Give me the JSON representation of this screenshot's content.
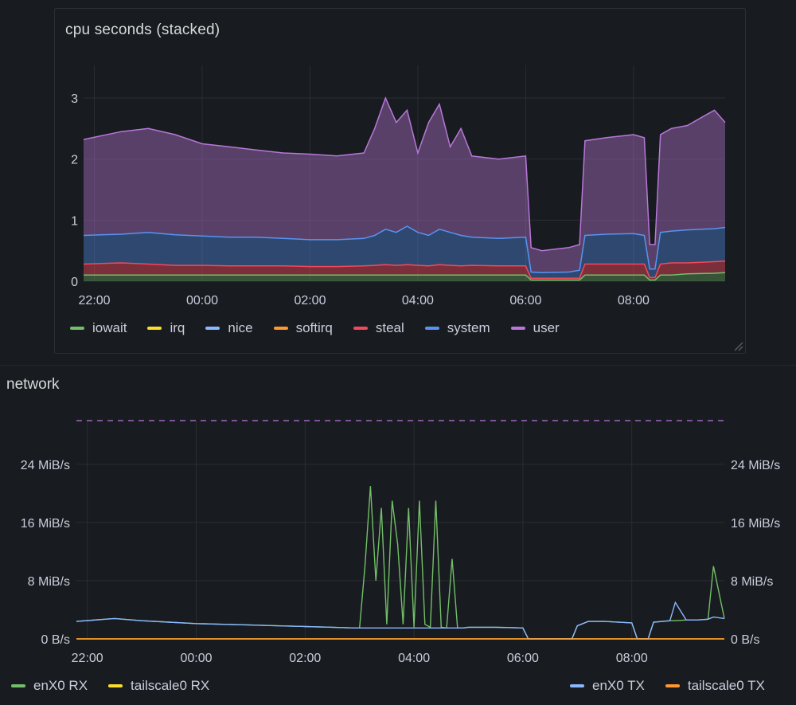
{
  "cpu_panel": {
    "title": "cpu seconds (stacked)",
    "legend": [
      {
        "name": "iowait",
        "color": "#73bf69"
      },
      {
        "name": "irq",
        "color": "#fade2a"
      },
      {
        "name": "nice",
        "color": "#8ab8ff"
      },
      {
        "name": "softirq",
        "color": "#ff9830"
      },
      {
        "name": "steal",
        "color": "#f2495c"
      },
      {
        "name": "system",
        "color": "#5794f2"
      },
      {
        "name": "user",
        "color": "#b877d9"
      }
    ]
  },
  "network_panel": {
    "title": "network",
    "legend_left": [
      {
        "name": "enX0 RX",
        "color": "#73bf69"
      },
      {
        "name": "tailscale0 RX",
        "color": "#fade2a"
      }
    ],
    "legend_right": [
      {
        "name": "enX0 TX",
        "color": "#8ab8ff"
      },
      {
        "name": "tailscale0 TX",
        "color": "#ff9830"
      }
    ]
  },
  "chart_data": [
    {
      "type": "area",
      "title": "cpu seconds (stacked)",
      "x_ticks": [
        "22:00",
        "00:00",
        "02:00",
        "04:00",
        "06:00",
        "08:00"
      ],
      "y_ticks": [
        "0",
        "1",
        "2",
        "3"
      ],
      "ylim": [
        0,
        3.3
      ],
      "x_hours": [
        21.8,
        22.5,
        23.0,
        23.5,
        0.0,
        0.5,
        1.0,
        1.5,
        2.0,
        2.5,
        3.0,
        3.2,
        3.4,
        3.6,
        3.8,
        4.0,
        4.2,
        4.4,
        4.6,
        4.8,
        5.0,
        5.5,
        6.0,
        6.1,
        6.3,
        6.8,
        7.0,
        7.1,
        7.5,
        8.0,
        8.2,
        8.3,
        8.4,
        8.5,
        8.7,
        9.0,
        9.5,
        9.7
      ],
      "stacked_cumulative": [
        {
          "name": "iowait",
          "values": [
            0.1,
            0.1,
            0.1,
            0.1,
            0.1,
            0.1,
            0.1,
            0.1,
            0.1,
            0.1,
            0.1,
            0.1,
            0.1,
            0.1,
            0.1,
            0.1,
            0.1,
            0.1,
            0.1,
            0.1,
            0.1,
            0.1,
            0.1,
            0.02,
            0.02,
            0.02,
            0.02,
            0.1,
            0.1,
            0.1,
            0.1,
            0.02,
            0.02,
            0.1,
            0.1,
            0.12,
            0.13,
            0.14
          ]
        },
        {
          "name": "steal",
          "values": [
            0.28,
            0.3,
            0.28,
            0.26,
            0.26,
            0.25,
            0.25,
            0.25,
            0.24,
            0.24,
            0.25,
            0.26,
            0.27,
            0.26,
            0.27,
            0.26,
            0.25,
            0.27,
            0.26,
            0.25,
            0.26,
            0.25,
            0.25,
            0.05,
            0.05,
            0.05,
            0.05,
            0.28,
            0.28,
            0.28,
            0.28,
            0.06,
            0.06,
            0.28,
            0.3,
            0.3,
            0.32,
            0.33
          ]
        },
        {
          "name": "system",
          "values": [
            0.75,
            0.77,
            0.8,
            0.76,
            0.74,
            0.72,
            0.72,
            0.7,
            0.68,
            0.68,
            0.7,
            0.75,
            0.85,
            0.8,
            0.9,
            0.8,
            0.75,
            0.85,
            0.8,
            0.75,
            0.72,
            0.7,
            0.72,
            0.15,
            0.14,
            0.15,
            0.18,
            0.75,
            0.77,
            0.78,
            0.75,
            0.2,
            0.2,
            0.8,
            0.82,
            0.84,
            0.86,
            0.88
          ]
        },
        {
          "name": "user",
          "values": [
            2.32,
            2.45,
            2.5,
            2.4,
            2.25,
            2.2,
            2.15,
            2.1,
            2.08,
            2.05,
            2.1,
            2.5,
            3.0,
            2.6,
            2.8,
            2.1,
            2.6,
            2.9,
            2.2,
            2.5,
            2.05,
            2.0,
            2.05,
            0.55,
            0.5,
            0.55,
            0.6,
            2.3,
            2.35,
            2.4,
            2.35,
            0.6,
            0.6,
            2.4,
            2.5,
            2.55,
            2.8,
            2.6
          ]
        }
      ]
    },
    {
      "type": "line",
      "title": "network",
      "x_ticks": [
        "22:00",
        "00:00",
        "02:00",
        "04:00",
        "06:00",
        "08:00"
      ],
      "y_ticks": [
        "0 B/s",
        "8 MiB/s",
        "16 MiB/s",
        "24 MiB/s"
      ],
      "ylim_mib": [
        0,
        30
      ],
      "threshold_mib": 30,
      "x_hours": [
        21.8,
        22.5,
        23.0,
        23.5,
        0.0,
        0.5,
        1.0,
        1.5,
        2.0,
        2.5,
        2.9,
        3.0,
        3.1,
        3.2,
        3.3,
        3.4,
        3.5,
        3.6,
        3.7,
        3.8,
        3.9,
        4.0,
        4.1,
        4.2,
        4.3,
        4.4,
        4.5,
        4.6,
        4.7,
        4.8,
        4.9,
        5.0,
        5.5,
        6.0,
        6.1,
        6.5,
        6.9,
        7.0,
        7.2,
        7.5,
        8.0,
        8.1,
        8.3,
        8.4,
        8.7,
        8.8,
        9.0,
        9.2,
        9.4,
        9.5,
        9.7
      ],
      "series": [
        {
          "name": "enX0 RX",
          "values": [
            2.4,
            2.8,
            2.5,
            2.3,
            2.1,
            2.0,
            1.9,
            1.8,
            1.7,
            1.6,
            1.5,
            1.5,
            10,
            21,
            8,
            18,
            2,
            19,
            13,
            2,
            18,
            1.6,
            19,
            2,
            1.6,
            19,
            1.6,
            1.5,
            11,
            1.5,
            1.5,
            1.6,
            1.6,
            1.5,
            0,
            0,
            0,
            1.8,
            2.4,
            2.4,
            2.2,
            0,
            0,
            2.3,
            2.5,
            2.5,
            2.6,
            2.6,
            2.7,
            10,
            2.8
          ]
        },
        {
          "name": "tailscale0 RX",
          "values": [
            0,
            0,
            0,
            0,
            0,
            0,
            0,
            0,
            0,
            0,
            0,
            0,
            0,
            0,
            0,
            0,
            0,
            0,
            0,
            0,
            0,
            0,
            0,
            0,
            0,
            0,
            0,
            0,
            0,
            0,
            0,
            0,
            0,
            0,
            0,
            0,
            0,
            0,
            0,
            0,
            0,
            0,
            0,
            0,
            0,
            0,
            0,
            0,
            0,
            0,
            0
          ]
        },
        {
          "name": "enX0 TX",
          "values": [
            2.4,
            2.8,
            2.5,
            2.3,
            2.1,
            2.0,
            1.9,
            1.8,
            1.7,
            1.6,
            1.5,
            1.5,
            1.5,
            1.5,
            1.5,
            1.5,
            1.5,
            1.5,
            1.5,
            1.5,
            1.5,
            1.5,
            1.5,
            1.5,
            1.5,
            1.5,
            1.5,
            1.5,
            1.5,
            1.5,
            1.5,
            1.6,
            1.6,
            1.5,
            0,
            0,
            0,
            1.8,
            2.4,
            2.4,
            2.2,
            0,
            0,
            2.3,
            2.5,
            5,
            2.6,
            2.6,
            2.7,
            3,
            2.8
          ]
        },
        {
          "name": "tailscale0 TX",
          "values": [
            0,
            0,
            0,
            0,
            0,
            0,
            0,
            0,
            0,
            0,
            0,
            0,
            0,
            0,
            0,
            0,
            0,
            0,
            0,
            0,
            0,
            0,
            0,
            0,
            0,
            0,
            0,
            0,
            0,
            0,
            0,
            0,
            0,
            0,
            0,
            0,
            0,
            0,
            0,
            0,
            0,
            0,
            0,
            0,
            0,
            0,
            0,
            0,
            0,
            0,
            0
          ]
        }
      ]
    }
  ]
}
